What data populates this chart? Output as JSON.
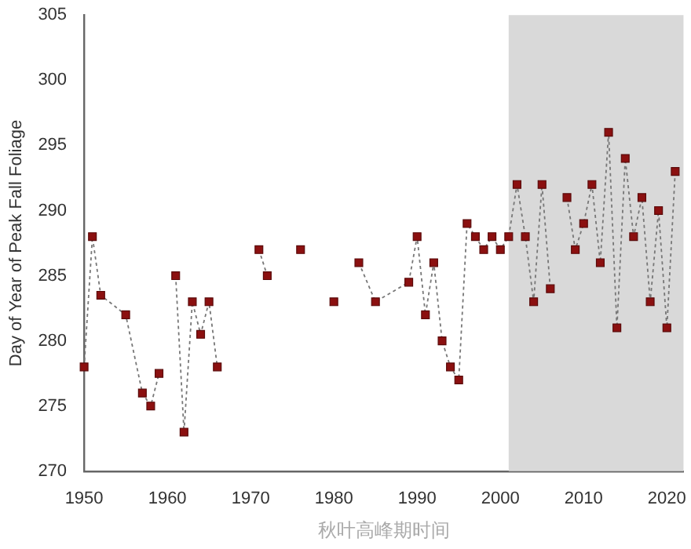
{
  "chart_data": {
    "type": "line",
    "xlabel": "秋叶高峰期时间",
    "ylabel": "Day of Year of Peak Fall Foliage",
    "x": [
      1950,
      1951,
      1952,
      1955,
      1957,
      1958,
      1959,
      1960,
      1961,
      1962,
      1963,
      1964,
      1965,
      1966,
      1967,
      1971,
      1972,
      1973,
      1976,
      1977,
      1980,
      1981,
      1983,
      1985,
      1989,
      1990,
      1991,
      1992,
      1993,
      1994,
      1995,
      1996,
      1997,
      1998,
      1999,
      2000,
      2001,
      2002,
      2003,
      2004,
      2005,
      2006,
      2007,
      2008,
      2009,
      2010,
      2011,
      2012,
      2013,
      2014,
      2015,
      2016,
      2017,
      2018,
      2019,
      2020,
      2021
    ],
    "series": [
      {
        "color": "#8b1010",
        "values": [
          278,
          288,
          283.5,
          282,
          276,
          275,
          277.5,
          null,
          285,
          273,
          283,
          280.5,
          283,
          278,
          null,
          287,
          285,
          null,
          287,
          null,
          283,
          null,
          286,
          283,
          284.5,
          288,
          282,
          286,
          280,
          278,
          277,
          289,
          288,
          287,
          288,
          287,
          288,
          292,
          288,
          283,
          292,
          284,
          null,
          291,
          287,
          289,
          292,
          286,
          296,
          281,
          294,
          288,
          291,
          283,
          290,
          281,
          293
        ]
      }
    ],
    "xlim": [
      1950,
      2022
    ],
    "ylim": [
      270,
      305
    ],
    "xticks": [
      1950,
      1960,
      1970,
      1980,
      1990,
      2000,
      2010,
      2020
    ],
    "yticks": [
      270,
      275,
      280,
      285,
      290,
      295,
      300,
      305
    ],
    "bands": [
      {
        "axis": "x",
        "from": 2001,
        "to": 2022,
        "color": "#d9d9d9"
      }
    ],
    "grid": false,
    "legend": false,
    "marker": "square",
    "line_style": "dotted"
  }
}
